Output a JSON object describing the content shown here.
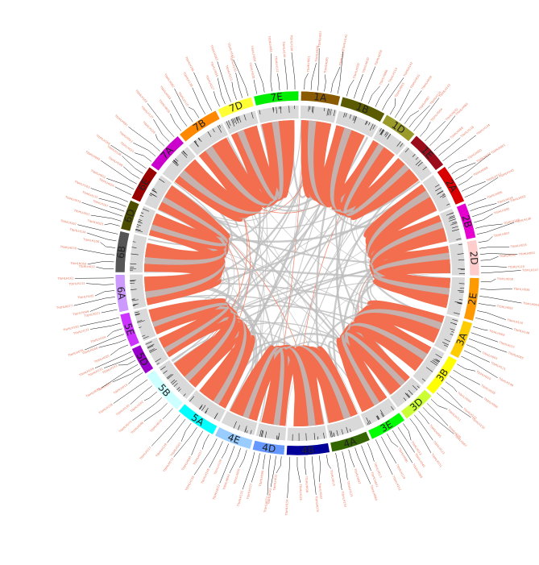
{
  "chromosomes": [
    {
      "name": "1A",
      "color": "#8a5a00",
      "size": 4.2
    },
    {
      "name": "1B",
      "color": "#5a5a00",
      "size": 4.8
    },
    {
      "name": "1D",
      "color": "#9a9a2a",
      "size": 3.6
    },
    {
      "name": "1E",
      "color": "#9a0b1c",
      "size": 4.2
    },
    {
      "name": "2A",
      "color": "#d90000",
      "size": 4.2
    },
    {
      "name": "2B",
      "color": "#e600d0",
      "size": 3.8
    },
    {
      "name": "2D",
      "color": "#ffcccc",
      "size": 3.8
    },
    {
      "name": "2E",
      "color": "#ff9900",
      "size": 4.6
    },
    {
      "name": "3A",
      "color": "#ffcc00",
      "size": 4.0
    },
    {
      "name": "3B",
      "color": "#ffff00",
      "size": 4.4
    },
    {
      "name": "3D",
      "color": "#ccff33",
      "size": 3.6
    },
    {
      "name": "3E",
      "color": "#00ff00",
      "size": 4.0
    },
    {
      "name": "4A",
      "color": "#336600",
      "size": 4.2
    },
    {
      "name": "4B",
      "color": "#000099",
      "size": 4.6
    },
    {
      "name": "4D",
      "color": "#6699ff",
      "size": 3.4
    },
    {
      "name": "4E",
      "color": "#99ccff",
      "size": 4.0
    },
    {
      "name": "5A",
      "color": "#00ffff",
      "size": 4.4
    },
    {
      "name": "5B",
      "color": "#ccffff",
      "size": 4.8
    },
    {
      "name": "5D",
      "color": "#9900cc",
      "size": 3.0
    },
    {
      "name": "5E",
      "color": "#cc33ff",
      "size": 3.6
    },
    {
      "name": "6A",
      "color": "#cc99ff",
      "size": 4.0
    },
    {
      "name": "6B",
      "color": "#555555",
      "size": 4.4
    },
    {
      "name": "6D",
      "color": "#4d4d00",
      "size": 3.2
    },
    {
      "name": "6E",
      "color": "#990000",
      "size": 3.8
    },
    {
      "name": "7A",
      "color": "#cc00cc",
      "size": 4.2
    },
    {
      "name": "7B",
      "color": "#ff8800",
      "size": 4.6
    },
    {
      "name": "7D",
      "color": "#ffff33",
      "size": 3.8
    },
    {
      "name": "7E",
      "color": "#00ee00",
      "size": 4.8
    }
  ],
  "links": {
    "syntenic_color": "#f26e4f",
    "background_color": "#bdbdbd",
    "groups": [
      [
        "1A",
        "1B",
        "1D",
        "1E"
      ],
      [
        "2A",
        "2B",
        "2D",
        "2E"
      ],
      [
        "3A",
        "3B",
        "3D",
        "3E"
      ],
      [
        "4A",
        "4B",
        "4D",
        "4E"
      ],
      [
        "5A",
        "5B",
        "5D",
        "5E"
      ],
      [
        "6A",
        "6B",
        "6D",
        "6E"
      ],
      [
        "7A",
        "7B",
        "7D",
        "7E"
      ]
    ]
  },
  "gene_labels": {
    "color": "#e8795f",
    "names": [
      "TtbHLH001",
      "TtbHLH002",
      "TtbHLH003",
      "TtbHLH004",
      "TtbHLH005",
      "TtbHLH006",
      "TtbHLH007",
      "TtbHLH008",
      "TtbHLH009",
      "TtbHLH010",
      "TtbHLH011",
      "TtbHLH012",
      "TtbHLH013",
      "TtbHLH014",
      "TtbHLH015",
      "TtbHLH016",
      "TtbHLH017",
      "TtbHLH018",
      "TtbHLH019",
      "TtbHLH020",
      "TtbHLH021",
      "TtbHLH022",
      "TtbHLH023",
      "TtbHLH024",
      "TtbHLH025",
      "TtbHLH026",
      "TtbHLH027",
      "TtbHLH028",
      "TtbHLH029",
      "TtbHLH030",
      "TtbHLH031",
      "TtbHLH032",
      "TtbHLH033",
      "TtbHLH034",
      "TtbHLH035",
      "TtbHLH036",
      "TtbHLH037",
      "TtbHLH038",
      "TtbHLH039",
      "TtbHLH040",
      "TtbHLH041",
      "TtbHLH042",
      "TtbHLH043",
      "TtbHLH044",
      "TtbHLH045",
      "TtbHLH046",
      "TtbHLH047",
      "TtbHLH048",
      "TtbHLH049",
      "TtbHLH050",
      "TtbHLH051",
      "TtbHLH052",
      "TtbHLH053",
      "TtbHLH054",
      "TtbHLH055",
      "TtbHLH056",
      "TtbHLH057",
      "TtbHLH058",
      "TtbHLH059",
      "TtbHLH060",
      "TtbHLH061",
      "TtbHLH062",
      "TtbHLH063",
      "TtbHLH064",
      "TtbHLH065",
      "TtbHLH066",
      "TtbHLH067",
      "TtbHLH068",
      "TtbHLH069",
      "TtbHLH070",
      "TtbHLH071",
      "TtbHLH072",
      "TtbHLH073",
      "TtbHLH074",
      "TtbHLH075",
      "TtbHLH076",
      "TtbHLH077",
      "TtbHLH078",
      "TtbHLH079",
      "TtbHLH080",
      "TtbHLH081",
      "TtbHLH082",
      "TtbHLH083",
      "TtbHLH084",
      "TtbHLH085",
      "TtbHLH086",
      "TtbHLH087",
      "TtbHLH088",
      "TtbHLH089",
      "TtbHLH090",
      "TtbHLH091",
      "TtbHLH092",
      "TtbHLH093",
      "TtbHLH094",
      "TtbHLH095",
      "TtbHLH096",
      "TtbHLH097",
      "TtbHLH098",
      "TtbHLH099",
      "TtbHLH100",
      "TtbHLH101",
      "TtbHLH102",
      "TtbHLH103",
      "TtbHLH104",
      "TtbHLH105",
      "TtbHLH106",
      "TtbHLH107",
      "TtbHLH108",
      "TtbHLH109",
      "TtbHLH110",
      "TtbHLH111",
      "TtbHLH112",
      "TtbHLH113",
      "TtbHLH114",
      "TtbHLH115",
      "TtbHLH116",
      "TtbHLH117",
      "TtbHLH118",
      "TtbHLH119",
      "TtbHLH120",
      "TtbHLH121",
      "TtbHLH122",
      "TtbHLH123",
      "TtbHLH124",
      "TtbHLH125",
      "TtbHLH126",
      "TtbHLH127",
      "TtbHLH128",
      "TtbHLH129",
      "TtbHLH130",
      "TtbHLH131",
      "TtbHLH132",
      "TtbHLH133",
      "TtbHLH134",
      "TtbHLH135",
      "TtbHLH136",
      "TtbHLH137",
      "TtbHLH138",
      "TtbHLH139",
      "TtbHLH140",
      "TtbHLH141",
      "TtbHLH142",
      "TtbHLH143",
      "TtbHLH144",
      "TtbHLH145",
      "TtbHLH146",
      "TtbHLH147",
      "TtbHLH148",
      "TtbHLH149",
      "TtbHLH150",
      "TtbHLH151",
      "TtbHLH152",
      "TtbHLH153",
      "TtbHLH154",
      "TtbHLH155",
      "TtbHLH156",
      "TtbHLH157",
      "TtbHLH158",
      "TtbHLH159",
      "TtbHLH160",
      "TtbHLH161",
      "TtbHLH162",
      "TtbHLH163",
      "TtbHLH164",
      "TtbHLH165",
      "TtbHLH166",
      "TtbHLH167",
      "TtbHLH168"
    ]
  }
}
